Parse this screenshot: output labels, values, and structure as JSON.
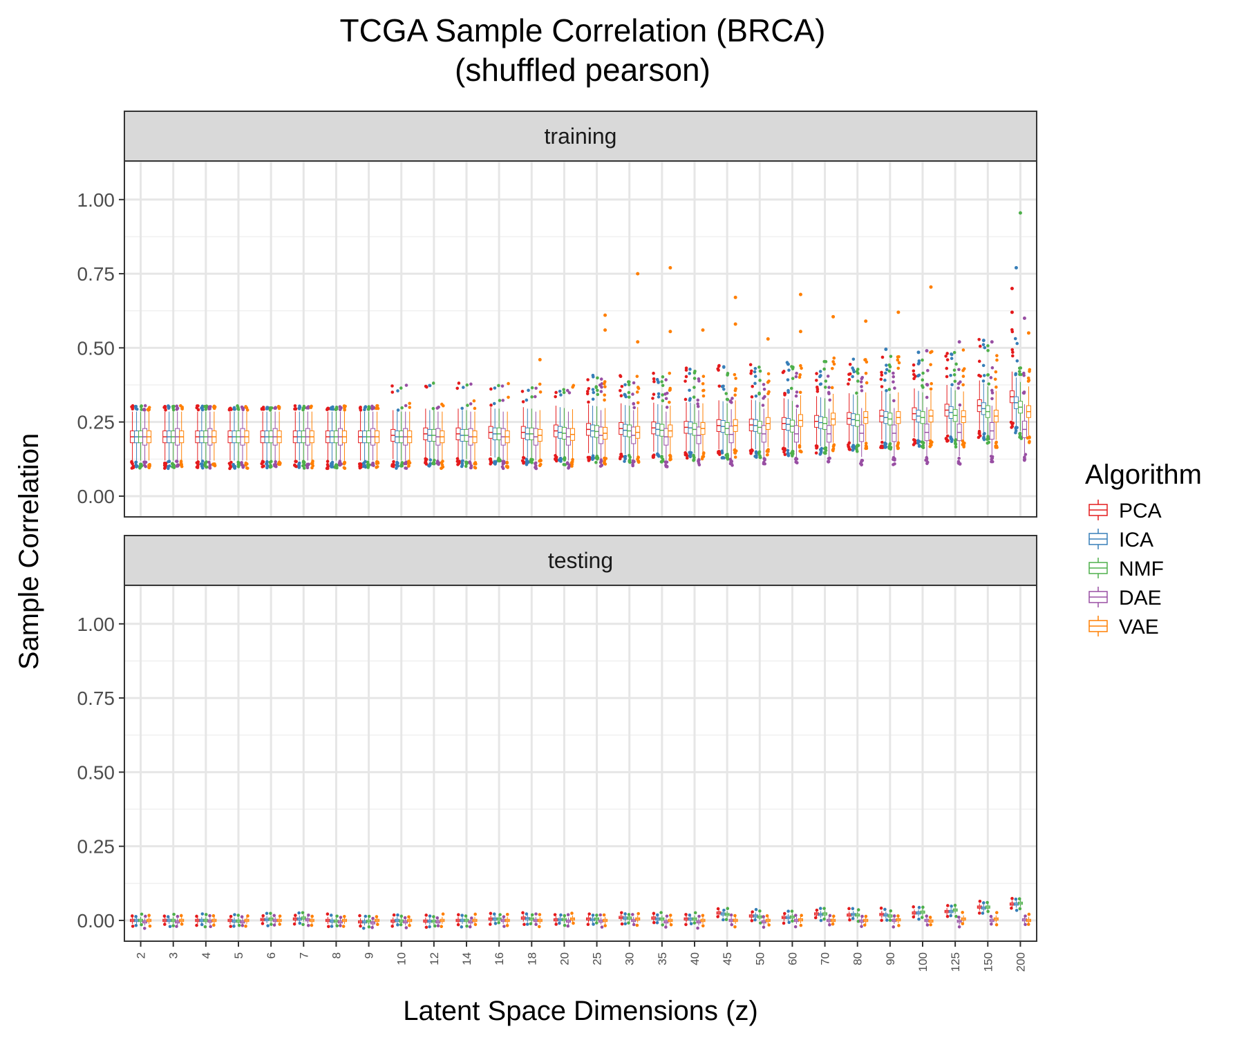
{
  "chart_data": {
    "type": "boxplot",
    "title": "TCGA Sample Correlation (BRCA)",
    "subtitle": "(shuffled pearson)",
    "xlabel": "Latent Space Dimensions (z)",
    "ylabel": "Sample Correlation",
    "ylim": [
      -0.07,
      1.13
    ],
    "yticks": [
      0.0,
      0.25,
      0.5,
      0.75,
      1.0
    ],
    "ytick_labels": [
      "0.00",
      "0.25",
      "0.50",
      "0.75",
      "1.00"
    ],
    "grid": true,
    "legend": {
      "title": "Algorithm",
      "placement": "right",
      "entries": [
        "PCA",
        "ICA",
        "NMF",
        "DAE",
        "VAE"
      ]
    },
    "colors": {
      "PCA": "#e41a1c",
      "ICA": "#377eb8",
      "NMF": "#4daf4a",
      "DAE": "#984ea3",
      "VAE": "#ff7f00"
    },
    "categories": [
      "2",
      "3",
      "4",
      "5",
      "6",
      "7",
      "8",
      "9",
      "10",
      "12",
      "14",
      "16",
      "18",
      "20",
      "25",
      "30",
      "35",
      "40",
      "45",
      "50",
      "60",
      "70",
      "80",
      "90",
      "100",
      "125",
      "150",
      "200"
    ],
    "panels": [
      {
        "label": "training",
        "medians": {
          "PCA": [
            0.2,
            0.2,
            0.2,
            0.2,
            0.2,
            0.2,
            0.2,
            0.2,
            0.205,
            0.21,
            0.21,
            0.215,
            0.215,
            0.22,
            0.225,
            0.228,
            0.23,
            0.232,
            0.238,
            0.24,
            0.245,
            0.252,
            0.262,
            0.27,
            0.278,
            0.29,
            0.305,
            0.335
          ],
          "ICA": [
            0.2,
            0.2,
            0.2,
            0.2,
            0.2,
            0.2,
            0.2,
            0.2,
            0.2,
            0.205,
            0.205,
            0.21,
            0.21,
            0.215,
            0.22,
            0.222,
            0.225,
            0.23,
            0.235,
            0.238,
            0.242,
            0.248,
            0.258,
            0.265,
            0.27,
            0.282,
            0.295,
            0.315
          ],
          "NMF": [
            0.2,
            0.2,
            0.2,
            0.2,
            0.2,
            0.2,
            0.2,
            0.2,
            0.2,
            0.205,
            0.205,
            0.21,
            0.21,
            0.212,
            0.218,
            0.22,
            0.222,
            0.225,
            0.228,
            0.232,
            0.236,
            0.245,
            0.255,
            0.26,
            0.265,
            0.272,
            0.285,
            0.3
          ],
          "DAE": [
            0.2,
            0.2,
            0.2,
            0.2,
            0.2,
            0.2,
            0.2,
            0.2,
            0.2,
            0.2,
            0.2,
            0.2,
            0.2,
            0.2,
            0.205,
            0.205,
            0.2,
            0.205,
            0.208,
            0.21,
            0.21,
            0.21,
            0.212,
            0.212,
            0.215,
            0.215,
            0.22,
            0.225
          ],
          "VAE": [
            0.2,
            0.2,
            0.2,
            0.2,
            0.2,
            0.2,
            0.2,
            0.2,
            0.2,
            0.2,
            0.2,
            0.2,
            0.205,
            0.208,
            0.212,
            0.215,
            0.22,
            0.228,
            0.238,
            0.245,
            0.255,
            0.26,
            0.265,
            0.265,
            0.27,
            0.268,
            0.27,
            0.285
          ]
        },
        "outliers": [
          {
            "c": "30",
            "alg": "VAE",
            "y": 0.75
          },
          {
            "c": "35",
            "alg": "VAE",
            "y": 0.77
          },
          {
            "c": "25",
            "alg": "VAE",
            "y": 0.61
          },
          {
            "c": "25",
            "alg": "VAE",
            "y": 0.56
          },
          {
            "c": "45",
            "alg": "VAE",
            "y": 0.67
          },
          {
            "c": "45",
            "alg": "VAE",
            "y": 0.58
          },
          {
            "c": "60",
            "alg": "VAE",
            "y": 0.68
          },
          {
            "c": "60",
            "alg": "VAE",
            "y": 0.555
          },
          {
            "c": "70",
            "alg": "VAE",
            "y": 0.605
          },
          {
            "c": "80",
            "alg": "VAE",
            "y": 0.59
          },
          {
            "c": "90",
            "alg": "VAE",
            "y": 0.62
          },
          {
            "c": "100",
            "alg": "VAE",
            "y": 0.705
          },
          {
            "c": "40",
            "alg": "VAE",
            "y": 0.56
          },
          {
            "c": "35",
            "alg": "VAE",
            "y": 0.555
          },
          {
            "c": "30",
            "alg": "VAE",
            "y": 0.52
          },
          {
            "c": "18",
            "alg": "VAE",
            "y": 0.46
          },
          {
            "c": "200",
            "alg": "NMF",
            "y": 0.955
          },
          {
            "c": "200",
            "alg": "ICA",
            "y": 0.77
          },
          {
            "c": "200",
            "alg": "PCA",
            "y": 0.7
          },
          {
            "c": "200",
            "alg": "PCA",
            "y": 0.62
          },
          {
            "c": "200",
            "alg": "DAE",
            "y": 0.6
          },
          {
            "c": "200",
            "alg": "VAE",
            "y": 0.55
          },
          {
            "c": "150",
            "alg": "ICA",
            "y": 0.525
          },
          {
            "c": "150",
            "alg": "DAE",
            "y": 0.52
          },
          {
            "c": "125",
            "alg": "DAE",
            "y": 0.52
          },
          {
            "c": "90",
            "alg": "ICA",
            "y": 0.495
          },
          {
            "c": "100",
            "alg": "ICA",
            "y": 0.485
          },
          {
            "c": "100",
            "alg": "DAE",
            "y": 0.49
          },
          {
            "c": "60",
            "alg": "ICA",
            "y": 0.445
          },
          {
            "c": "50",
            "alg": "VAE",
            "y": 0.53
          }
        ]
      },
      {
        "label": "testing",
        "medians": {
          "PCA": [
            0.0,
            0.0,
            0.0,
            0.0,
            0.003,
            0.005,
            0.0,
            -0.005,
            -0.002,
            -0.002,
            0.0,
            0.005,
            0.008,
            0.002,
            0.005,
            0.01,
            0.008,
            0.005,
            0.025,
            0.015,
            0.01,
            0.022,
            0.018,
            0.02,
            0.025,
            0.03,
            0.045,
            0.055
          ],
          "ICA": [
            0.0,
            0.0,
            0.0,
            -0.002,
            0.003,
            0.005,
            -0.002,
            -0.005,
            0.0,
            -0.003,
            0.0,
            0.005,
            0.006,
            0.003,
            0.003,
            0.008,
            0.005,
            0.005,
            0.022,
            0.015,
            0.01,
            0.02,
            0.02,
            0.018,
            0.025,
            0.03,
            0.042,
            0.055
          ],
          "NMF": [
            0.0,
            0.0,
            0.0,
            -0.002,
            0.005,
            0.008,
            -0.003,
            -0.003,
            -0.002,
            -0.003,
            0.0,
            0.005,
            0.005,
            0.003,
            0.005,
            0.008,
            0.005,
            0.005,
            0.02,
            0.012,
            0.012,
            0.022,
            0.018,
            0.015,
            0.028,
            0.035,
            0.045,
            0.058
          ],
          "DAE": [
            -0.005,
            -0.005,
            -0.002,
            -0.005,
            0.0,
            0.002,
            -0.005,
            -0.008,
            -0.005,
            -0.005,
            -0.005,
            0.0,
            0.0,
            -0.002,
            -0.002,
            0.0,
            -0.005,
            -0.005,
            0.0,
            -0.005,
            0.0,
            0.0,
            -0.002,
            0.0,
            0.0,
            -0.003,
            0.0,
            0.002
          ],
          "VAE": [
            0.0,
            0.0,
            0.0,
            0.0,
            0.0,
            0.0,
            0.0,
            0.0,
            0.0,
            0.0,
            0.0,
            0.0,
            0.0,
            0.005,
            0.0,
            0.005,
            0.0,
            0.0,
            0.0,
            0.0,
            0.002,
            0.0,
            0.0,
            0.002,
            -0.002,
            0.005,
            0.005,
            0.0
          ]
        },
        "outliers": []
      }
    ]
  }
}
